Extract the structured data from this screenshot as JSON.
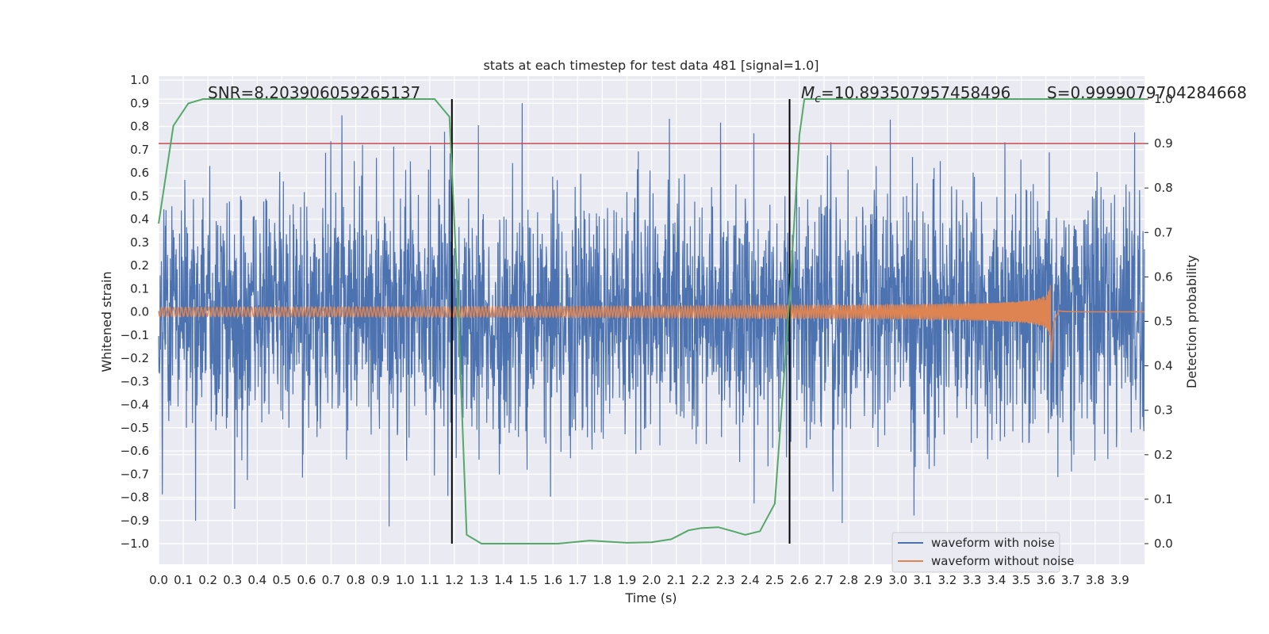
{
  "chart_data": {
    "type": "line",
    "title": "stats at each timestep for test data 481 [signal=1.0]",
    "xlabel": "Time (s)",
    "ylabel": "Whitened strain",
    "ylabel_right": "Detection probability",
    "xlim": [
      0.0,
      4.0
    ],
    "ylim": [
      -1.09,
      1.0
    ],
    "ylim_right": [
      -0.05,
      1.0
    ],
    "grid": true,
    "legend_position": "lower right",
    "x_ticks": [
      "0.0",
      "0.1",
      "0.2",
      "0.3",
      "0.4",
      "0.5",
      "0.6",
      "0.7",
      "0.8",
      "0.9",
      "1.0",
      "1.1",
      "1.2",
      "1.3",
      "1.4",
      "1.5",
      "1.6",
      "1.7",
      "1.8",
      "1.9",
      "2.0",
      "2.1",
      "2.2",
      "2.3",
      "2.4",
      "2.5",
      "2.6",
      "2.7",
      "2.8",
      "2.9",
      "3.0",
      "3.1",
      "3.2",
      "3.3",
      "3.4",
      "3.5",
      "3.6",
      "3.7",
      "3.8",
      "3.9"
    ],
    "y_ticks": [
      "1.0",
      "0.9",
      "0.8",
      "0.7",
      "0.6",
      "0.5",
      "0.4",
      "0.3",
      "0.2",
      "0.1",
      "0.0",
      "−0.1",
      "−0.2",
      "−0.3",
      "−0.4",
      "−0.5",
      "−0.6",
      "−0.7",
      "−0.8",
      "−0.9",
      "−1.0"
    ],
    "y_ticks_right": [
      "1.0",
      "0.9",
      "0.8",
      "0.7",
      "0.6",
      "0.5",
      "0.4",
      "0.3",
      "0.2",
      "0.1",
      "0.0"
    ],
    "annotations": {
      "snr": "SNR=8.203906059265137",
      "mc_symbol": "M",
      "mc_sub": "c",
      "mc_value": "=10.893507957458496",
      "s": "S=0.9999079704284668"
    },
    "vertical_lines": [
      1.19,
      2.56
    ],
    "threshold_line": {
      "axis": "right",
      "value": 0.9,
      "color": "#c44e52"
    },
    "series": [
      {
        "name": "waveform with noise",
        "color": "#4c72b0",
        "axis": "left",
        "kind": "noise",
        "typical_amplitude": 0.35
      },
      {
        "name": "waveform without noise",
        "color": "#dd8452",
        "axis": "left",
        "kind": "chirp",
        "amplitude_start": 0.02,
        "amplitude_peak": 0.25,
        "merger_time": 3.62
      },
      {
        "color": "#55a868",
        "axis": "right",
        "kind": "probability",
        "x": [
          0.0,
          0.06,
          0.12,
          0.18,
          0.3,
          0.5,
          0.8,
          1.0,
          1.12,
          1.18,
          1.21,
          1.25,
          1.31,
          1.4,
          1.55,
          1.62,
          1.75,
          1.9,
          2.0,
          2.08,
          2.15,
          2.2,
          2.27,
          2.33,
          2.38,
          2.44,
          2.5,
          2.56,
          2.6,
          2.62,
          3.0,
          3.5,
          4.0
        ],
        "y": [
          0.72,
          0.94,
          0.99,
          1.0,
          1.0,
          1.0,
          1.0,
          1.0,
          1.0,
          0.96,
          0.6,
          0.02,
          0.0,
          0.0,
          0.0,
          0.0,
          0.007,
          0.002,
          0.003,
          0.01,
          0.03,
          0.035,
          0.037,
          0.028,
          0.02,
          0.028,
          0.09,
          0.55,
          0.92,
          1.0,
          1.0,
          1.0,
          1.0
        ]
      }
    ],
    "legend": [
      "waveform with noise",
      "waveform without noise"
    ]
  }
}
